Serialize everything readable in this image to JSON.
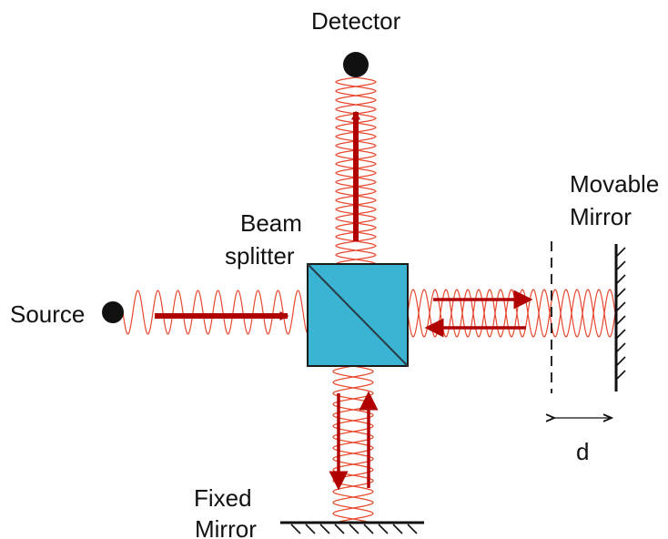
{
  "labels": {
    "detector": "Detector",
    "movable_mirror_line1": "Movable",
    "movable_mirror_line2": "Mirror",
    "beam_splitter_line1": "Beam",
    "beam_splitter_line2": "splitter",
    "source": "Source",
    "fixed_mirror_line1": "Fixed",
    "fixed_mirror_line2": "Mirror",
    "displacement": "d"
  },
  "colors": {
    "wave": "#e8482f",
    "arrow": "#b00000",
    "splitter_fill": "#3ab4d2",
    "splitter_edge": "#1a1a1a",
    "ink": "#111111"
  }
}
